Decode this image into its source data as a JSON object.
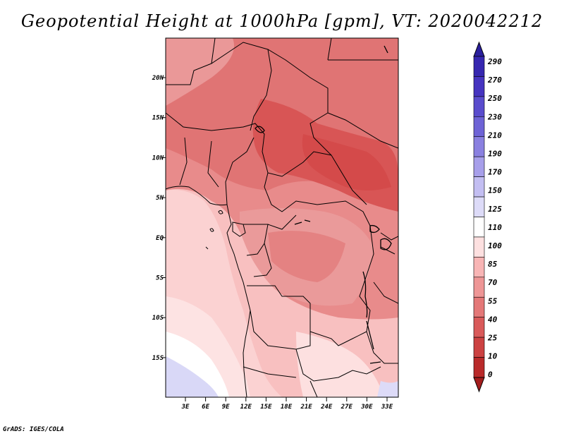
{
  "title": "Geopotential Height at 1000hPa [gpm], VT: 2020042212",
  "credit": "GrADS: IGES/COLA",
  "map": {
    "lat_labels": [
      "20N",
      "15N",
      "10N",
      "5N",
      "EQ",
      "5S",
      "10S",
      "15S"
    ],
    "lon_labels": [
      "3E",
      "6E",
      "9E",
      "12E",
      "15E",
      "18E",
      "21E",
      "24E",
      "27E",
      "30E",
      "33E"
    ]
  },
  "colorbar": {
    "levels": [
      "290",
      "270",
      "250",
      "230",
      "210",
      "190",
      "170",
      "150",
      "125",
      "110",
      "100",
      "85",
      "70",
      "55",
      "40",
      "25",
      "10",
      "0"
    ],
    "colors": [
      "#2a1f9e",
      "#3627b0",
      "#4634c0",
      "#5a4ccd",
      "#6e63d6",
      "#8a80e0",
      "#a79fea",
      "#c3bef2",
      "#dddbf8",
      "#ffffff",
      "#fde0e0",
      "#f8b5b5",
      "#ee9696",
      "#e47878",
      "#d95a5a",
      "#cc4242",
      "#b92a2a",
      "#a41d1d"
    ]
  },
  "colors": {
    "land_base": "#e98c8c",
    "ocean": "#fbcfcf",
    "high_blue": "#d9d8f7",
    "border": "#000000"
  }
}
